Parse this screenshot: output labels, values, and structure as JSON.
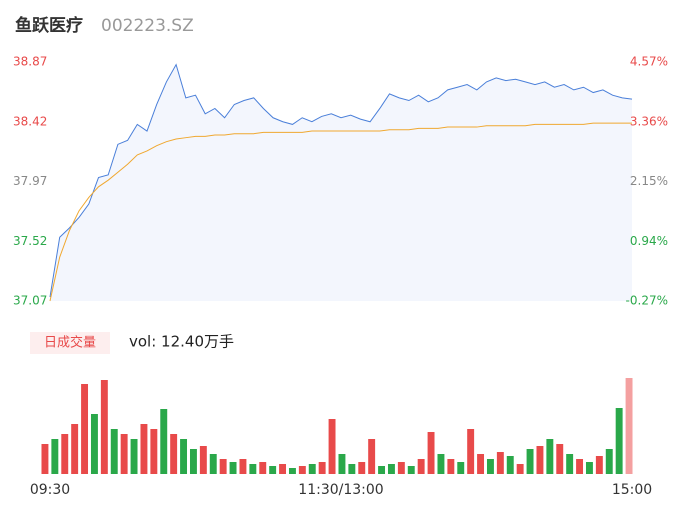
{
  "chart_data": [
    {
      "type": "line",
      "title": "鱼跃医疗",
      "subtitle": "002223.SZ",
      "x": [
        0,
        4,
        8,
        12,
        16,
        20,
        24,
        28,
        32,
        36,
        40,
        44,
        48,
        52,
        56,
        60,
        64,
        68,
        72,
        76,
        80,
        84,
        88,
        92,
        96,
        100,
        104,
        108,
        112,
        116,
        120,
        124,
        128,
        132,
        136,
        140,
        144,
        148,
        152,
        156,
        160,
        164,
        168,
        172,
        176,
        180,
        184,
        188,
        192,
        196,
        200,
        204,
        208,
        212,
        216,
        220,
        224,
        228,
        232,
        236,
        240
      ],
      "xlim": [
        0,
        240
      ],
      "xticks": [
        {
          "value": 0,
          "label": "09:30"
        },
        {
          "value": 120,
          "label": "11:30/13:00"
        },
        {
          "value": 240,
          "label": "15:00"
        }
      ],
      "series": [
        {
          "color": "#4a7fd9",
          "values": [
            37.1,
            37.55,
            37.62,
            37.7,
            37.8,
            38.0,
            38.02,
            38.25,
            38.28,
            38.4,
            38.35,
            38.55,
            38.72,
            38.85,
            38.6,
            38.62,
            38.48,
            38.52,
            38.45,
            38.55,
            38.58,
            38.6,
            38.52,
            38.45,
            38.42,
            38.4,
            38.45,
            38.42,
            38.46,
            38.48,
            38.45,
            38.47,
            38.44,
            38.42,
            38.52,
            38.63,
            38.6,
            38.58,
            38.62,
            38.57,
            38.6,
            38.66,
            38.68,
            38.7,
            38.66,
            38.72,
            38.75,
            38.73,
            38.74,
            38.72,
            38.7,
            38.72,
            38.68,
            38.7,
            38.66,
            38.68,
            38.64,
            38.66,
            38.62,
            38.6,
            38.59
          ]
        },
        {
          "color": "#f0a830",
          "values": [
            37.07,
            37.4,
            37.6,
            37.75,
            37.85,
            37.93,
            37.98,
            38.04,
            38.1,
            38.17,
            38.2,
            38.24,
            38.27,
            38.29,
            38.3,
            38.31,
            38.31,
            38.32,
            38.32,
            38.33,
            38.33,
            38.33,
            38.34,
            38.34,
            38.34,
            38.34,
            38.34,
            38.35,
            38.35,
            38.35,
            38.35,
            38.35,
            38.35,
            38.35,
            38.35,
            38.36,
            38.36,
            38.36,
            38.37,
            38.37,
            38.37,
            38.38,
            38.38,
            38.38,
            38.38,
            38.39,
            38.39,
            38.39,
            38.39,
            38.39,
            38.4,
            38.4,
            38.4,
            38.4,
            38.4,
            38.4,
            38.41,
            38.41,
            38.41,
            38.41,
            38.41
          ]
        }
      ],
      "ylim": [
        37.07,
        38.87
      ],
      "yticks": [
        38.87,
        38.42,
        37.97,
        37.52,
        37.07
      ],
      "y2lim": [
        -0.27,
        4.57
      ],
      "y2ticks": [
        {
          "value": 4.57,
          "label": "4.57%"
        },
        {
          "value": 3.36,
          "label": "3.36%"
        },
        {
          "value": 2.15,
          "label": "2.15%"
        },
        {
          "value": 0.94,
          "label": "0.94%"
        },
        {
          "value": -0.27,
          "label": "-0.27%"
        }
      ]
    },
    {
      "type": "bar",
      "title": "日成交量",
      "annotation": "vol: 12.40万手",
      "values": [
        30,
        35,
        40,
        50,
        90,
        60,
        94,
        45,
        40,
        35,
        50,
        45,
        65,
        40,
        35,
        25,
        28,
        20,
        15,
        12,
        15,
        10,
        12,
        8,
        10,
        6,
        8,
        10,
        12,
        55,
        20,
        10,
        12,
        35,
        8,
        10,
        12,
        8,
        15,
        42,
        20,
        15,
        12,
        45,
        20,
        15,
        22,
        18,
        10,
        25,
        28,
        35,
        30,
        20,
        15,
        12,
        18,
        25,
        66,
        96
      ],
      "colors": [
        "#e84a4a",
        "#2aa84a",
        "#e84a4a",
        "#e84a4a",
        "#e84a4a",
        "#2aa84a",
        "#e84a4a",
        "#2aa84a",
        "#e84a4a",
        "#2aa84a",
        "#e84a4a",
        "#e84a4a",
        "#2aa84a",
        "#e84a4a",
        "#2aa84a",
        "#2aa84a",
        "#e84a4a",
        "#2aa84a",
        "#e84a4a",
        "#2aa84a",
        "#e84a4a",
        "#2aa84a",
        "#e84a4a",
        "#2aa84a",
        "#e84a4a",
        "#2aa84a",
        "#e84a4a",
        "#2aa84a",
        "#e84a4a",
        "#e84a4a",
        "#2aa84a",
        "#2aa84a",
        "#e84a4a",
        "#e84a4a",
        "#2aa84a",
        "#2aa84a",
        "#e84a4a",
        "#2aa84a",
        "#e84a4a",
        "#e84a4a",
        "#2aa84a",
        "#e84a4a",
        "#2aa84a",
        "#e84a4a",
        "#e84a4a",
        "#2aa84a",
        "#e84a4a",
        "#2aa84a",
        "#e84a4a",
        "#2aa84a",
        "#e84a4a",
        "#2aa84a",
        "#e84a4a",
        "#2aa84a",
        "#e84a4a",
        "#2aa84a",
        "#e84a4a",
        "#2aa84a",
        "#2aa84a",
        "#f4a0a0"
      ]
    }
  ]
}
